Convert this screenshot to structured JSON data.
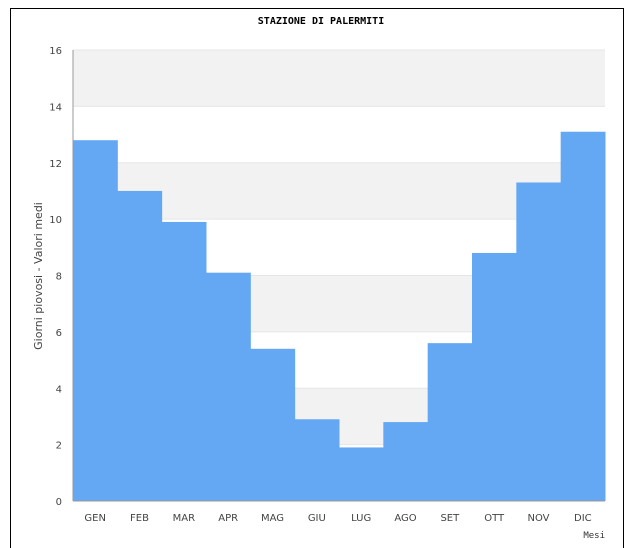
{
  "chart_data": {
    "type": "bar",
    "title": "STAZIONE DI PALERMITI",
    "xlabel": "Mesi",
    "ylabel": "Giorni piovosi - Valori medi",
    "categories": [
      "GEN",
      "FEB",
      "MAR",
      "APR",
      "MAG",
      "GIU",
      "LUG",
      "AGO",
      "SET",
      "OTT",
      "NOV",
      "DIC"
    ],
    "values": [
      12.8,
      11.0,
      9.9,
      8.1,
      5.4,
      2.9,
      1.9,
      2.8,
      5.6,
      8.8,
      11.3,
      13.1
    ],
    "ylim": [
      0,
      16
    ],
    "yticks": [
      "0",
      "2",
      "4",
      "6",
      "8",
      "10",
      "12",
      "14",
      "16"
    ],
    "bar_color": "#64a8f4",
    "band_color": "#f2f2f2",
    "grid": true,
    "legend": "none"
  }
}
